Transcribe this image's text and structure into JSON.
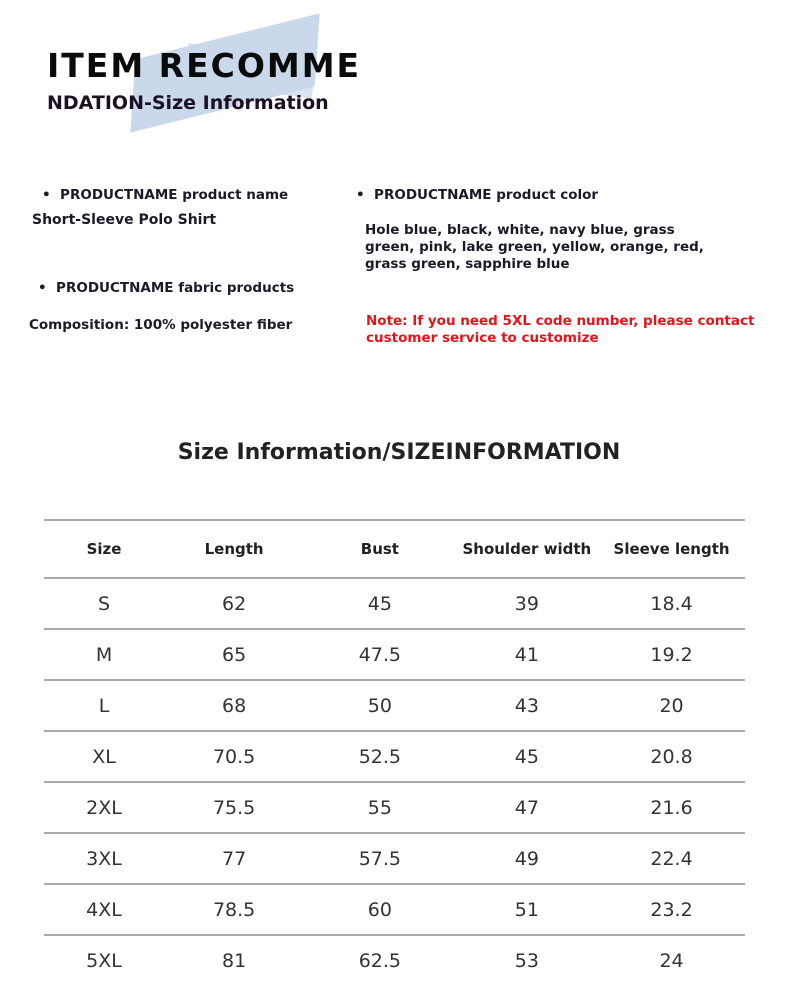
{
  "header": {
    "title_line1": "ITEM RECOMME",
    "title_line2": "NDATION-Size Information"
  },
  "info": {
    "name_label": "PRODUCTNAME product name",
    "name_value": "Short-Sleeve Polo Shirt",
    "fabric_label": "PRODUCTNAME fabric products",
    "fabric_value": "Composition: 100% polyester fiber",
    "color_label": "PRODUCTNAME product color",
    "color_lines": [
      "Hole blue, black, white, navy blue, grass",
      "green, pink, lake green, yellow, orange, red,",
      "grass green, sapphire blue"
    ],
    "note_lines": [
      "Note: If you need 5XL code number, please contact",
      "customer service to customize"
    ],
    "bullet": "•"
  },
  "colors": {
    "note": "#e8131a",
    "tape": "#b7cbe3"
  },
  "size_table": {
    "title": "Size Information/SIZEINFORMATION",
    "headers": [
      "Size",
      "Length",
      "Bust",
      "Shoulder width",
      "Sleeve length"
    ],
    "rows": [
      [
        "S",
        "62",
        "45",
        "39",
        "18.4"
      ],
      [
        "M",
        "65",
        "47.5",
        "41",
        "19.2"
      ],
      [
        "L",
        "68",
        "50",
        "43",
        "20"
      ],
      [
        "XL",
        "70.5",
        "52.5",
        "45",
        "20.8"
      ],
      [
        "2XL",
        "75.5",
        "55",
        "47",
        "21.6"
      ],
      [
        "3XL",
        "77",
        "57.5",
        "49",
        "22.4"
      ],
      [
        "4XL",
        "78.5",
        "60",
        "51",
        "23.2"
      ],
      [
        "5XL",
        "81",
        "62.5",
        "53",
        "24"
      ]
    ]
  }
}
